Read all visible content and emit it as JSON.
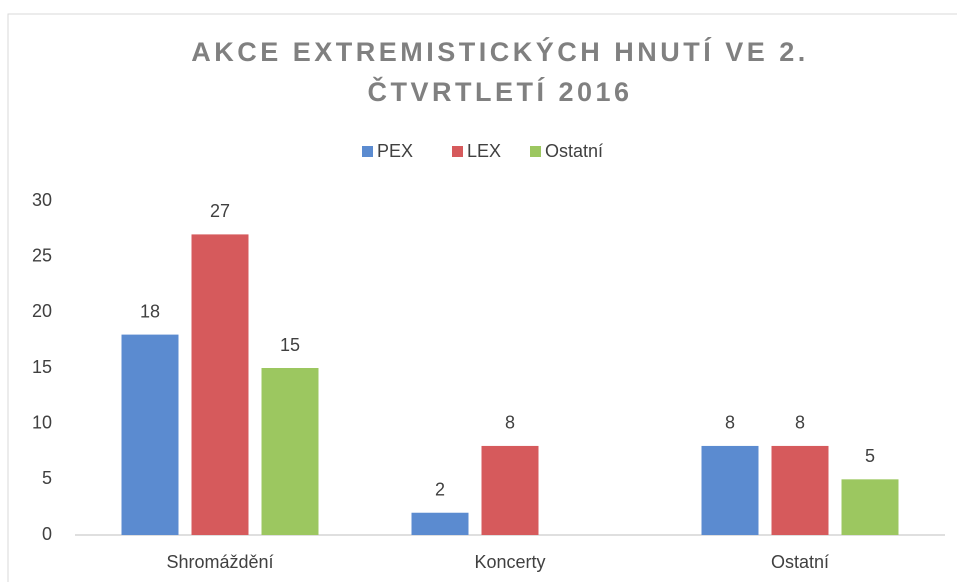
{
  "chart_data": {
    "type": "bar",
    "title": "AKCE EXTREMISTICKÝCH HNUTÍ VE 2. ČTVRTLETÍ 2016",
    "categories": [
      "Shromáždění",
      "Koncerty",
      "Ostatní"
    ],
    "series": [
      {
        "name": "PEX",
        "color": "#5b8bd0",
        "values": [
          18,
          2,
          8
        ]
      },
      {
        "name": "LEX",
        "color": "#d65a5c",
        "values": [
          27,
          8,
          8
        ]
      },
      {
        "name": "Ostatní",
        "color": "#9cc760",
        "values": [
          15,
          null,
          5
        ]
      }
    ],
    "ylim": [
      0,
      30
    ],
    "yticks": [
      0,
      5,
      10,
      15,
      20,
      25,
      30
    ],
    "grid": false,
    "legend": "top"
  }
}
